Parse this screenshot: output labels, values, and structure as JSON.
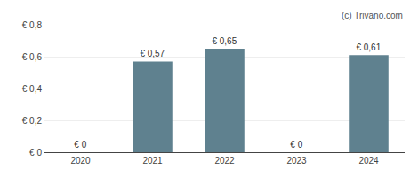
{
  "chart_data": {
    "type": "bar",
    "categories": [
      "2020",
      "2021",
      "2022",
      "2023",
      "2024"
    ],
    "values": [
      0,
      0.57,
      0.65,
      0,
      0.61
    ],
    "value_labels": [
      "€ 0",
      "€ 0,57",
      "€ 0,65",
      "€ 0",
      "€ 0,61"
    ],
    "data_labels": true,
    "color": "#5f818f",
    "ylim": [
      0,
      0.8
    ],
    "yticks": [
      {
        "value": 0,
        "label": "€ 0"
      },
      {
        "value": 0.2,
        "label": "€ 0,2"
      },
      {
        "value": 0.4,
        "label": "€ 0,4"
      },
      {
        "value": 0.6,
        "label": "€ 0,6"
      },
      {
        "value": 0.8,
        "label": "€ 0,8"
      }
    ],
    "grid": true,
    "annotations": [
      "(c) Trivano.com"
    ]
  }
}
